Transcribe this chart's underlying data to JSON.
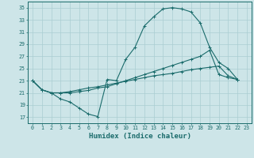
{
  "xlabel": "Humidex (Indice chaleur)",
  "bg_color": "#cde5e8",
  "grid_color": "#aacdd2",
  "line_color": "#1a6b6b",
  "xlim": [
    -0.5,
    23.5
  ],
  "ylim": [
    16.0,
    36.0
  ],
  "yticks": [
    17,
    19,
    21,
    23,
    25,
    27,
    29,
    31,
    33,
    35
  ],
  "xticks": [
    0,
    1,
    2,
    3,
    4,
    5,
    6,
    7,
    8,
    9,
    10,
    11,
    12,
    13,
    14,
    15,
    16,
    17,
    18,
    19,
    20,
    21,
    22,
    23
  ],
  "curve_top": [
    23,
    21.5,
    21,
    20,
    19.5,
    18.5,
    17.5,
    17.1,
    23.2,
    23,
    26.5,
    28.5,
    32,
    33.5,
    34.8,
    35,
    34.8,
    34.3,
    32.5,
    28.5,
    26,
    25,
    23.2
  ],
  "curve_mid": [
    23,
    21.5,
    21,
    21.0,
    21.0,
    21.2,
    21.4,
    21.8,
    22.0,
    22.5,
    23.0,
    23.5,
    24.0,
    24.5,
    25.0,
    25.5,
    26.0,
    26.5,
    27.0,
    28.0,
    24.0,
    23.5,
    23.2
  ],
  "curve_bot": [
    23,
    21.5,
    21,
    21.0,
    21.2,
    21.5,
    21.8,
    22.0,
    22.3,
    22.6,
    22.9,
    23.2,
    23.5,
    23.8,
    24.0,
    24.2,
    24.5,
    24.8,
    25.0,
    25.2,
    25.4,
    23.8,
    23.2
  ]
}
